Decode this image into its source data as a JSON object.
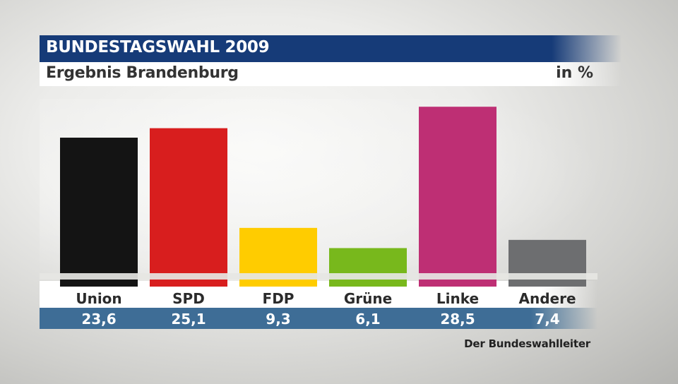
{
  "header": {
    "title": "BUNDESTAGSWAHL 2009",
    "subtitle": "Ergebnis Brandenburg",
    "unit": "in %"
  },
  "chart_data": {
    "type": "bar",
    "title": "BUNDESTAGSWAHL 2009",
    "subtitle": "Ergebnis Brandenburg",
    "unit": "in %",
    "categories": [
      "Union",
      "SPD",
      "FDP",
      "Grüne",
      "Linke",
      "Andere"
    ],
    "values": [
      23.6,
      25.1,
      9.3,
      6.1,
      28.5,
      7.4
    ],
    "value_labels": [
      "23,6",
      "25,1",
      "9,3",
      "6,1",
      "28,5",
      "7,4"
    ],
    "colors": [
      "#141414",
      "#d81e1e",
      "#ffcc00",
      "#78b81c",
      "#be2f74",
      "#6d6e70"
    ],
    "ylim": [
      0,
      30
    ],
    "xlabel": "",
    "ylabel": "",
    "grid": false
  },
  "footer": {
    "source": "Der Bundeswahlleiter"
  },
  "colors": {
    "title_bar": "#163b78",
    "value_bar": "#3e6d96"
  }
}
